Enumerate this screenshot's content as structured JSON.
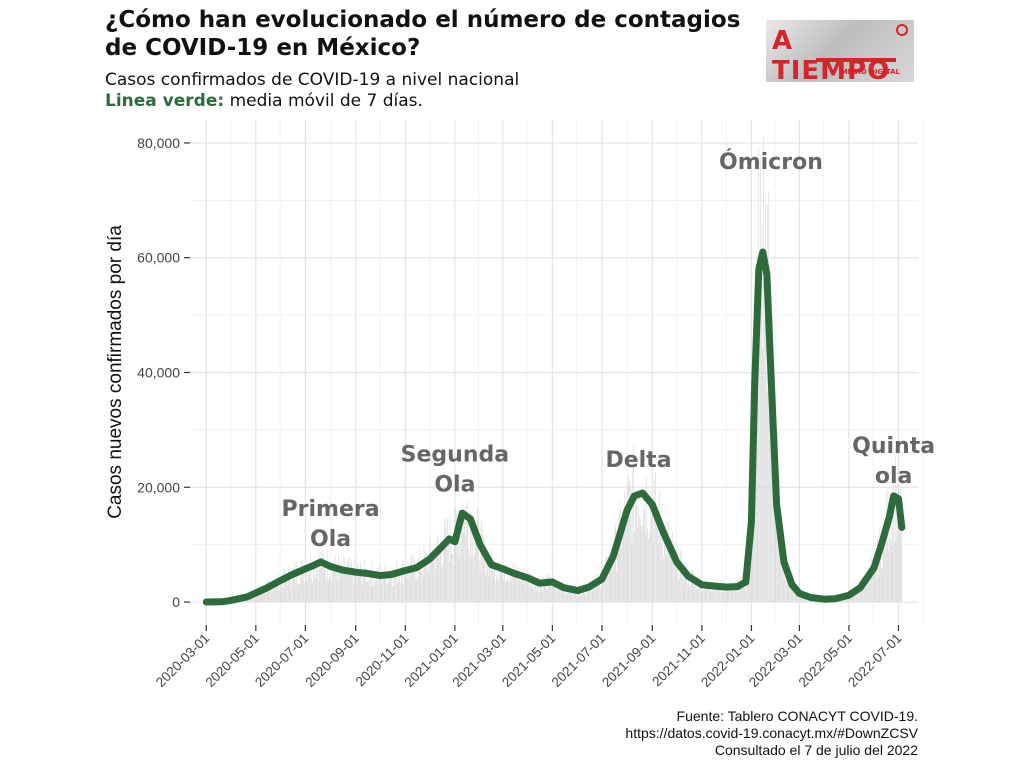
{
  "header": {
    "title": "¿Cómo han evolucionado el número de contagios de COVID-19 en México?",
    "subtitle": "Casos confirmados de COVID-19 a nivel nacional",
    "legend_label": "Linea verde:",
    "legend_text": " media móvil de 7 días."
  },
  "logo": {
    "name": "A TIEMPO",
    "tagline": "MEDIO DIGITAL"
  },
  "source": {
    "line1": "Fuente: Tablero CONACYT COVID-19.",
    "line2": "https://datos.covid-19.conacyt.mx/#DownZCSV",
    "line3": "Consultado el 7 de julio del 2022"
  },
  "chart_data": {
    "type": "line",
    "ylabel": "Casos nuevos confirmados por día",
    "ylim": [
      -4000,
      84000
    ],
    "yticks": [
      0,
      20000,
      40000,
      60000,
      80000
    ],
    "ytick_labels": [
      "0",
      "20,000",
      "40,000",
      "60,000",
      "80,000"
    ],
    "xlim": [
      "2020-02-10",
      "2022-07-25"
    ],
    "xticks": [
      "2020-03-01",
      "2020-05-01",
      "2020-07-01",
      "2020-09-01",
      "2020-11-01",
      "2021-01-01",
      "2021-03-01",
      "2021-05-01",
      "2021-07-01",
      "2021-09-01",
      "2021-11-01",
      "2022-01-01",
      "2022-03-01",
      "2022-05-01",
      "2022-07-01"
    ],
    "grid": true,
    "colors": {
      "moving_average": "#2e6b3c",
      "daily_bars": "#dcdcdc",
      "annotation": "#666666"
    },
    "series": [
      {
        "name": "media móvil de 7 días",
        "x": [
          "2020-03-01",
          "2020-03-20",
          "2020-04-01",
          "2020-04-20",
          "2020-05-01",
          "2020-05-15",
          "2020-06-01",
          "2020-06-15",
          "2020-07-01",
          "2020-07-10",
          "2020-07-20",
          "2020-08-01",
          "2020-08-15",
          "2020-09-01",
          "2020-09-15",
          "2020-10-01",
          "2020-10-15",
          "2020-11-01",
          "2020-11-15",
          "2020-12-01",
          "2020-12-15",
          "2020-12-25",
          "2021-01-01",
          "2021-01-10",
          "2021-01-20",
          "2021-02-01",
          "2021-02-15",
          "2021-03-01",
          "2021-03-15",
          "2021-04-01",
          "2021-04-15",
          "2021-05-01",
          "2021-05-15",
          "2021-06-01",
          "2021-06-15",
          "2021-07-01",
          "2021-07-15",
          "2021-08-01",
          "2021-08-10",
          "2021-08-20",
          "2021-09-01",
          "2021-09-15",
          "2021-10-01",
          "2021-10-15",
          "2021-11-01",
          "2021-11-15",
          "2021-12-01",
          "2021-12-15",
          "2021-12-25",
          "2022-01-01",
          "2022-01-05",
          "2022-01-10",
          "2022-01-15",
          "2022-01-20",
          "2022-01-25",
          "2022-02-01",
          "2022-02-10",
          "2022-02-20",
          "2022-03-01",
          "2022-03-15",
          "2022-04-01",
          "2022-04-15",
          "2022-05-01",
          "2022-05-15",
          "2022-06-01",
          "2022-06-10",
          "2022-06-20",
          "2022-06-25",
          "2022-07-01",
          "2022-07-05"
        ],
        "y": [
          0,
          50,
          300,
          900,
          1600,
          2500,
          3800,
          4800,
          5800,
          6300,
          7000,
          6200,
          5600,
          5200,
          5000,
          4600,
          4800,
          5500,
          6000,
          7500,
          9500,
          11000,
          10500,
          15500,
          14500,
          10000,
          6500,
          5800,
          5000,
          4200,
          3300,
          3500,
          2500,
          2000,
          2600,
          4000,
          8000,
          16000,
          18500,
          19000,
          17000,
          12000,
          7000,
          4500,
          3000,
          2800,
          2600,
          2700,
          3500,
          14000,
          38000,
          58000,
          61000,
          57000,
          40000,
          17000,
          7000,
          3000,
          1500,
          800,
          500,
          600,
          1200,
          2500,
          6000,
          10000,
          15000,
          18500,
          18000,
          13000
        ]
      }
    ],
    "annotations": [
      {
        "label_line1": "Primera",
        "label_line2": "Ola",
        "x": "2020-08-01",
        "y": 15000
      },
      {
        "label_line1": "Segunda",
        "label_line2": "Ola",
        "x": "2021-01-01",
        "y": 24500
      },
      {
        "label_line1": "Delta",
        "label_line2": "",
        "x": "2021-08-15",
        "y": 23500
      },
      {
        "label_line1": "Ómicron",
        "label_line2": "",
        "x": "2022-01-25",
        "y": 75500
      },
      {
        "label_line1": "Quinta",
        "label_line2": "ola",
        "x": "2022-06-25",
        "y": 26000
      }
    ]
  }
}
